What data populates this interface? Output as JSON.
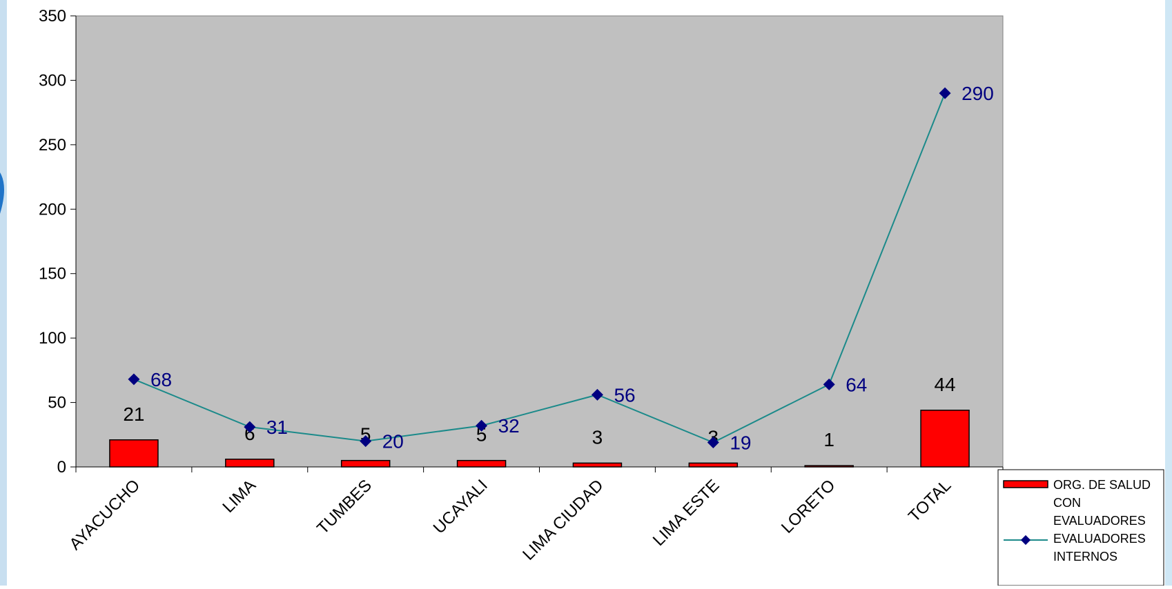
{
  "chart_data": {
    "type": "bar",
    "categories": [
      "AYACUCHO",
      "LIMA",
      "TUMBES",
      "UCAYALI",
      "LIMA CIUDAD",
      "LIMA ESTE",
      "LORETO",
      "TOTAL"
    ],
    "series": [
      {
        "name": "ORG. DE SALUD CON EVALUADORES",
        "kind": "bar",
        "color": "#ff0000",
        "values": [
          21,
          6,
          5,
          5,
          3,
          3,
          1,
          44
        ]
      },
      {
        "name": "EVALUADORES INTERNOS",
        "kind": "line",
        "color": "#1b8a8a",
        "marker_color": "#000080",
        "values": [
          68,
          31,
          20,
          32,
          56,
          19,
          64,
          290
        ]
      }
    ],
    "ylim": [
      0,
      350
    ],
    "yticks": [
      "0",
      "50",
      "100",
      "150",
      "200",
      "250",
      "300",
      "350"
    ],
    "plot_background": "#c0c0c0",
    "legend_position": "bottom-right",
    "grid": false,
    "title": "",
    "xlabel": "",
    "ylabel": ""
  },
  "legend": {
    "bar_label": "ORG. DE SALUD CON EVALUADORES",
    "line_label": "EVALUADORES INTERNOS"
  }
}
